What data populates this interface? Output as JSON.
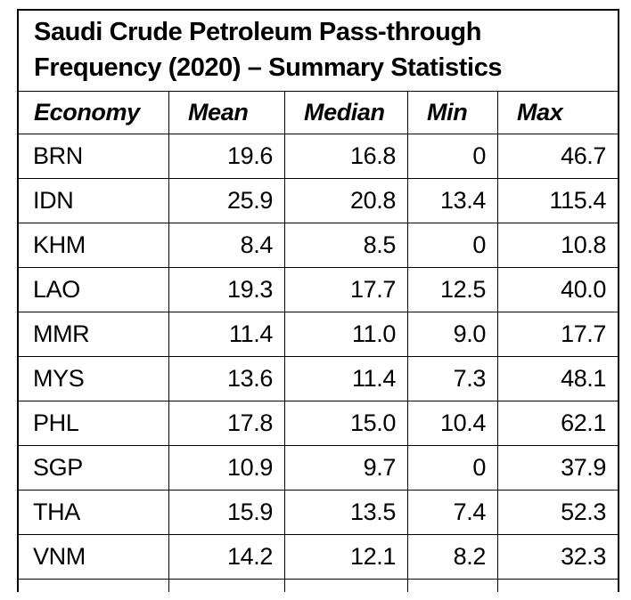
{
  "title": {
    "lines": [
      "Saudi Crude Petroleum Pass-through",
      "Frequency (2020) – Summary Statistics"
    ]
  },
  "chart_data": {
    "type": "table",
    "title": "Saudi Crude Petroleum Pass-through Frequency (2020) – Summary Statistics",
    "columns": [
      "Economy",
      "Mean",
      "Median",
      "Min",
      "Max"
    ],
    "rows": [
      [
        "BRN",
        "19.6",
        "16.8",
        "0",
        "46.7"
      ],
      [
        "IDN",
        "25.9",
        "20.8",
        "13.4",
        "115.4"
      ],
      [
        "KHM",
        "8.4",
        "8.5",
        "0",
        "10.8"
      ],
      [
        "LAO",
        "19.3",
        "17.7",
        "12.5",
        "40.0"
      ],
      [
        "MMR",
        "11.4",
        "11.0",
        "9.0",
        "17.7"
      ],
      [
        "MYS",
        "13.6",
        "11.4",
        "7.3",
        "48.1"
      ],
      [
        "PHL",
        "17.8",
        "15.0",
        "10.4",
        "62.1"
      ],
      [
        "SGP",
        "10.9",
        "9.7",
        "0",
        "37.9"
      ],
      [
        "THA",
        "15.9",
        "13.5",
        "7.4",
        "52.3"
      ],
      [
        "VNM",
        "14.2",
        "12.1",
        "8.2",
        "32.3"
      ]
    ],
    "layout": {
      "grid": true,
      "header_style": "bold-italic",
      "numeric_alignment": "right",
      "bottom_edge": "cropped-partial-row"
    },
    "colors": {
      "text": "#000000",
      "border": "#000000",
      "background": "#ffffff"
    }
  }
}
